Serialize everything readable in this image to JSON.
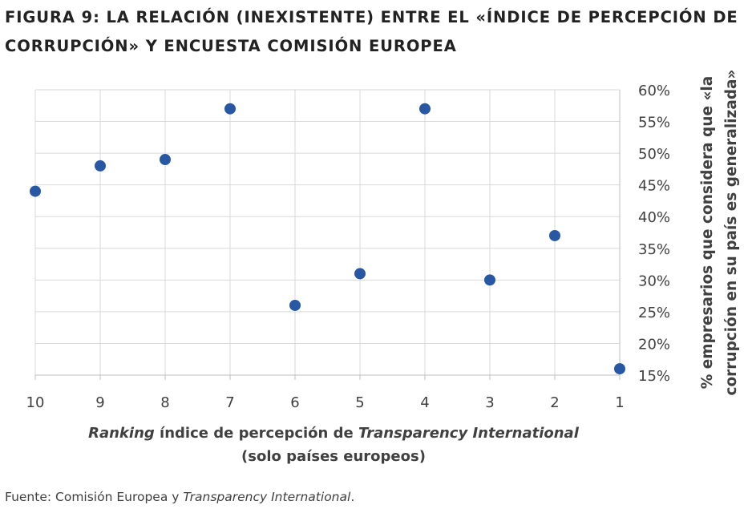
{
  "header": {
    "title_line1": "FIGURA 9: LA RELACIÓN (INEXISTENTE) ENTRE EL «ÍNDICE DE PERCEPCIÓN DE",
    "title_line2": "CORRUPCIÓN» Y ENCUESTA COMISIÓN EUROPEA"
  },
  "footer": {
    "source_prefix": "Fuente: Comisión Europea y ",
    "source_italic": "Transparency International",
    "source_suffix": "."
  },
  "chart_data": {
    "type": "scatter",
    "title": "FIGURA 9: LA RELACIÓN (INEXISTENTE) ENTRE EL «ÍNDICE DE PERCEPCIÓN DE CORRUPCIÓN» Y ENCUESTA COMISIÓN EUROPEA",
    "xlabel_parts": {
      "line1_italic_a": "Ranking",
      "line1_plain": " índice de percepción de ",
      "line1_italic_b": "Transparency International",
      "line2": "(solo países europeos)"
    },
    "ylabel_line1": "% empresarios que considera que «la",
    "ylabel_line2": "corrupción en su país es generalizada»",
    "x_reversed": true,
    "xlim": [
      1,
      10
    ],
    "ylim": [
      15,
      60
    ],
    "x_ticks": [
      10,
      9,
      8,
      7,
      6,
      5,
      4,
      3,
      2,
      1
    ],
    "y_ticks": [
      15,
      20,
      25,
      30,
      35,
      40,
      45,
      50,
      55,
      60
    ],
    "y_tick_labels": [
      "15%",
      "20%",
      "25%",
      "30%",
      "35%",
      "40%",
      "45%",
      "50%",
      "55%",
      "60%"
    ],
    "y_axis_side": "right",
    "grid": true,
    "marker_color": "#2857A4",
    "points": [
      {
        "x": 10,
        "y": 44
      },
      {
        "x": 9,
        "y": 48
      },
      {
        "x": 8,
        "y": 49
      },
      {
        "x": 7,
        "y": 57
      },
      {
        "x": 6,
        "y": 26
      },
      {
        "x": 5,
        "y": 31
      },
      {
        "x": 4,
        "y": 57
      },
      {
        "x": 3,
        "y": 30
      },
      {
        "x": 2,
        "y": 37
      },
      {
        "x": 1,
        "y": 16
      }
    ]
  }
}
